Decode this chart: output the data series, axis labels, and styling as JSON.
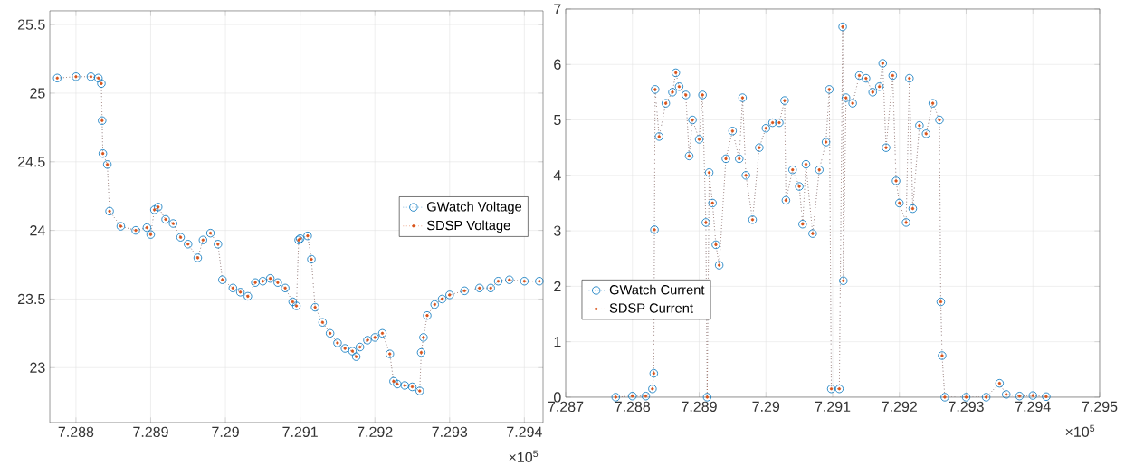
{
  "chart_data": [
    {
      "type": "line",
      "x": [
        7.28775,
        7.288,
        7.2882,
        7.2883,
        7.28834,
        7.28835,
        7.28836,
        7.28842,
        7.28845,
        7.2886,
        7.2888,
        7.28895,
        7.289,
        7.28905,
        7.2891,
        7.2892,
        7.2893,
        7.2894,
        7.2895,
        7.28963,
        7.2897,
        7.2898,
        7.2899,
        7.28996,
        7.2901,
        7.2902,
        7.2903,
        7.2904,
        7.2905,
        7.2906,
        7.2907,
        7.2908,
        7.2909,
        7.29095,
        7.29098,
        7.291,
        7.2911,
        7.29115,
        7.2912,
        7.2913,
        7.2914,
        7.2915,
        7.2916,
        7.2917,
        7.29175,
        7.2918,
        7.2919,
        7.292,
        7.2921,
        7.2922,
        7.29225,
        7.2923,
        7.2924,
        7.2925,
        7.2926,
        7.29262,
        7.29265,
        7.2927,
        7.2928,
        7.2929,
        7.293,
        7.2932,
        7.2934,
        7.29355,
        7.29365,
        7.2938,
        7.294,
        7.2942
      ],
      "series": [
        {
          "name": "GWatch Voltage",
          "color": "#0072bd",
          "marker": "circle",
          "line_style": "dotted",
          "values": [
            25.11,
            25.12,
            25.12,
            25.11,
            25.07,
            24.8,
            24.56,
            24.48,
            24.14,
            24.03,
            24.0,
            24.02,
            23.97,
            24.15,
            24.17,
            24.08,
            24.05,
            23.95,
            23.9,
            23.8,
            23.93,
            23.98,
            23.9,
            23.64,
            23.58,
            23.55,
            23.52,
            23.62,
            23.63,
            23.65,
            23.62,
            23.58,
            23.48,
            23.45,
            23.93,
            23.94,
            23.96,
            23.79,
            23.44,
            23.33,
            23.25,
            23.18,
            23.14,
            23.12,
            23.08,
            23.15,
            23.2,
            23.22,
            23.25,
            23.1,
            22.9,
            22.88,
            22.87,
            22.86,
            22.83,
            23.11,
            23.22,
            23.38,
            23.46,
            23.5,
            23.53,
            23.56,
            23.58,
            23.58,
            23.63,
            23.64,
            23.63,
            23.63
          ]
        },
        {
          "name": "SDSP Voltage",
          "color": "#d95319",
          "marker": "circle",
          "line_style": "dotted",
          "values": [
            25.11,
            25.12,
            25.12,
            25.11,
            25.07,
            24.8,
            24.56,
            24.48,
            24.14,
            24.03,
            24.0,
            24.02,
            23.97,
            24.15,
            24.17,
            24.08,
            24.05,
            23.95,
            23.9,
            23.8,
            23.93,
            23.98,
            23.9,
            23.64,
            23.58,
            23.55,
            23.52,
            23.62,
            23.63,
            23.65,
            23.62,
            23.58,
            23.48,
            23.45,
            23.93,
            23.94,
            23.96,
            23.79,
            23.44,
            23.33,
            23.25,
            23.18,
            23.14,
            23.12,
            23.08,
            23.15,
            23.2,
            23.22,
            23.25,
            23.1,
            22.9,
            22.88,
            22.87,
            22.86,
            22.83,
            23.11,
            23.22,
            23.38,
            23.46,
            23.5,
            23.53,
            23.56,
            23.58,
            23.58,
            23.63,
            23.64,
            23.63,
            23.63
          ]
        }
      ],
      "xlim": [
        7.28765,
        7.29425
      ],
      "ylim": [
        22.6,
        25.6
      ],
      "xticks": [
        7.288,
        7.289,
        7.29,
        7.291,
        7.292,
        7.293,
        7.294
      ],
      "yticks": [
        23,
        23.5,
        24,
        24.5,
        25,
        25.5
      ],
      "grid": true,
      "legend": "right",
      "annotations": [
        "×10$^{5}$"
      ]
    },
    {
      "type": "line",
      "x": [
        7.28775,
        7.288,
        7.2882,
        7.2883,
        7.28832,
        7.28833,
        7.28834,
        7.2884,
        7.2885,
        7.2886,
        7.28865,
        7.2887,
        7.2888,
        7.28885,
        7.2889,
        7.289,
        7.28905,
        7.2891,
        7.28912,
        7.28915,
        7.2892,
        7.28925,
        7.2893,
        7.2894,
        7.2895,
        7.2896,
        7.28965,
        7.2897,
        7.2898,
        7.2899,
        7.29,
        7.2901,
        7.2902,
        7.29028,
        7.2903,
        7.2904,
        7.2905,
        7.29055,
        7.2906,
        7.2907,
        7.2908,
        7.2909,
        7.29095,
        7.29098,
        7.2911,
        7.29115,
        7.29116,
        7.2912,
        7.2913,
        7.2914,
        7.2915,
        7.2916,
        7.2917,
        7.29175,
        7.2918,
        7.2919,
        7.29195,
        7.292,
        7.2921,
        7.29215,
        7.2922,
        7.2923,
        7.2924,
        7.2925,
        7.2926,
        7.29262,
        7.29264,
        7.29268,
        7.293,
        7.2933,
        7.2935,
        7.2936,
        7.2938,
        7.294,
        7.2942
      ],
      "series": [
        {
          "name": "GWatch Current",
          "color": "#0072bd",
          "marker": "circle",
          "line_style": "dotted",
          "values": [
            0.0,
            0.02,
            0.02,
            0.15,
            0.43,
            3.02,
            5.55,
            4.7,
            5.3,
            5.5,
            5.85,
            5.6,
            5.45,
            4.35,
            5.0,
            4.65,
            5.45,
            3.15,
            0.0,
            4.05,
            3.5,
            2.75,
            2.38,
            4.3,
            4.8,
            4.3,
            5.4,
            4.0,
            3.2,
            4.5,
            4.85,
            4.95,
            4.95,
            5.35,
            3.55,
            4.1,
            3.8,
            3.12,
            4.2,
            2.95,
            4.1,
            4.6,
            5.55,
            0.15,
            0.15,
            6.68,
            2.1,
            5.4,
            5.3,
            5.8,
            5.75,
            5.5,
            5.6,
            6.02,
            4.5,
            5.8,
            3.9,
            3.5,
            3.15,
            5.75,
            3.4,
            4.9,
            4.75,
            5.3,
            5.0,
            1.72,
            0.75,
            0.0,
            0.0,
            0.0,
            0.25,
            0.05,
            0.02,
            0.03,
            0.01
          ]
        },
        {
          "name": "SDSP Current",
          "color": "#d95319",
          "marker": "circle",
          "line_style": "dotted",
          "values": [
            0.0,
            0.02,
            0.02,
            0.15,
            0.43,
            3.02,
            5.55,
            4.7,
            5.3,
            5.5,
            5.85,
            5.6,
            5.45,
            4.35,
            5.0,
            4.65,
            5.45,
            3.15,
            0.0,
            4.05,
            3.5,
            2.75,
            2.38,
            4.3,
            4.8,
            4.3,
            5.4,
            4.0,
            3.2,
            4.5,
            4.85,
            4.95,
            4.95,
            5.35,
            3.55,
            4.1,
            3.8,
            3.12,
            4.2,
            2.95,
            4.1,
            4.6,
            5.55,
            0.15,
            0.15,
            6.68,
            2.1,
            5.4,
            5.3,
            5.8,
            5.75,
            5.5,
            5.6,
            6.02,
            4.5,
            5.8,
            3.9,
            3.5,
            3.15,
            5.75,
            3.4,
            4.9,
            4.75,
            5.3,
            5.0,
            1.72,
            0.75,
            0.0,
            0.0,
            0.0,
            0.25,
            0.05,
            0.02,
            0.03,
            0.01
          ]
        }
      ],
      "xlim": [
        7.287,
        7.295
      ],
      "ylim": [
        0,
        7
      ],
      "xticks": [
        7.287,
        7.288,
        7.289,
        7.29,
        7.291,
        7.292,
        7.293,
        7.294,
        7.295
      ],
      "yticks": [
        0,
        1,
        2,
        3,
        4,
        5,
        6,
        7
      ],
      "grid": true,
      "legend": "bottom left",
      "annotations": [
        "×10$^{5}$"
      ]
    }
  ]
}
